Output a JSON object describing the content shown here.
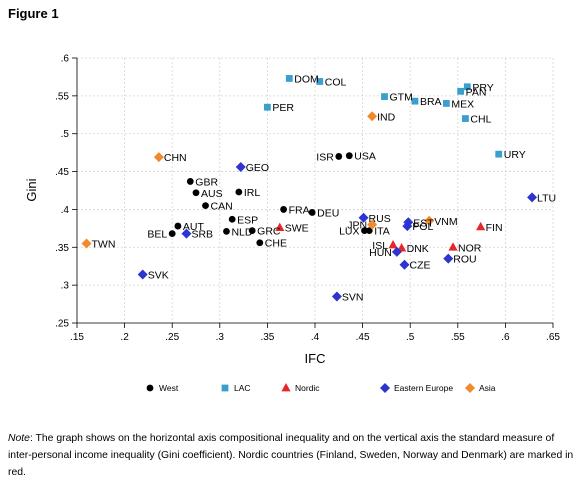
{
  "figure_label": "Figure 1",
  "note": {
    "label": "Note",
    "text": ": The graph shows on the horizontal axis compositional inequality and on the vertical axis the standard measure of inter-personal income inequality (Gini coefficient). Nordic countries (Finland, Sweden, Norway and Denmark) are marked in red."
  },
  "colors": {
    "West": "#000000",
    "LAC": "#3a9fcc",
    "Nordic": "#e8262a",
    "Eastern Europe": "#2e34cf",
    "Asia": "#f08a2c"
  },
  "chart_data": {
    "type": "scatter",
    "xlabel": "IFC",
    "ylabel": "Gini",
    "xlim": [
      0.15,
      0.65
    ],
    "ylim": [
      0.25,
      0.6
    ],
    "xticks": [
      ".15",
      ".2",
      ".25",
      ".3",
      ".35",
      ".4",
      ".45",
      ".5",
      ".55",
      ".6",
      ".65"
    ],
    "yticks": [
      ".25",
      ".3",
      ".35",
      ".4",
      ".45",
      ".5",
      ".55",
      ".6"
    ],
    "grid": true,
    "legend_position": "bottom",
    "series": [
      {
        "name": "West",
        "marker": "circle",
        "points": [
          {
            "label": "GBR",
            "x": 0.269,
            "y": 0.437
          },
          {
            "label": "AUS",
            "x": 0.275,
            "y": 0.422
          },
          {
            "label": "CAN",
            "x": 0.285,
            "y": 0.405
          },
          {
            "label": "IRL",
            "x": 0.32,
            "y": 0.423
          },
          {
            "label": "ESP",
            "x": 0.313,
            "y": 0.387
          },
          {
            "label": "AUT",
            "x": 0.256,
            "y": 0.378
          },
          {
            "label": "BEL",
            "x": 0.25,
            "y": 0.368
          },
          {
            "label": "NLD",
            "x": 0.307,
            "y": 0.371
          },
          {
            "label": "GRC",
            "x": 0.334,
            "y": 0.372
          },
          {
            "label": "CHE",
            "x": 0.342,
            "y": 0.356
          },
          {
            "label": "FRA",
            "x": 0.367,
            "y": 0.4
          },
          {
            "label": "DEU",
            "x": 0.397,
            "y": 0.396
          },
          {
            "label": "ISR",
            "x": 0.425,
            "y": 0.47
          },
          {
            "label": "USA",
            "x": 0.436,
            "y": 0.471
          },
          {
            "label": "LUX",
            "x": 0.452,
            "y": 0.372
          },
          {
            "label": "ITA",
            "x": 0.457,
            "y": 0.372
          }
        ]
      },
      {
        "name": "LAC",
        "marker": "square",
        "points": [
          {
            "label": "DOM",
            "x": 0.373,
            "y": 0.573
          },
          {
            "label": "COL",
            "x": 0.405,
            "y": 0.569
          },
          {
            "label": "PER",
            "x": 0.35,
            "y": 0.535
          },
          {
            "label": "GTM",
            "x": 0.473,
            "y": 0.549
          },
          {
            "label": "BRA",
            "x": 0.505,
            "y": 0.543
          },
          {
            "label": "MEX",
            "x": 0.538,
            "y": 0.54
          },
          {
            "label": "PRY",
            "x": 0.56,
            "y": 0.562
          },
          {
            "label": "PAN",
            "x": 0.553,
            "y": 0.556
          },
          {
            "label": "CHL",
            "x": 0.558,
            "y": 0.52
          },
          {
            "label": "URY",
            "x": 0.593,
            "y": 0.473
          }
        ]
      },
      {
        "name": "Nordic",
        "marker": "triangle",
        "points": [
          {
            "label": "SWE",
            "x": 0.363,
            "y": 0.376
          },
          {
            "label": "ISL",
            "x": 0.482,
            "y": 0.353
          },
          {
            "label": "DNK",
            "x": 0.491,
            "y": 0.349
          },
          {
            "label": "NOR",
            "x": 0.545,
            "y": 0.35
          },
          {
            "label": "FIN",
            "x": 0.574,
            "y": 0.377
          }
        ]
      },
      {
        "name": "Eastern Europe",
        "marker": "diamond",
        "points": [
          {
            "label": "GEO",
            "x": 0.322,
            "y": 0.456
          },
          {
            "label": "SRB",
            "x": 0.265,
            "y": 0.368
          },
          {
            "label": "SVK",
            "x": 0.219,
            "y": 0.314
          },
          {
            "label": "SVN",
            "x": 0.423,
            "y": 0.285
          },
          {
            "label": "RUS",
            "x": 0.451,
            "y": 0.389
          },
          {
            "label": "EST",
            "x": 0.498,
            "y": 0.383
          },
          {
            "label": "POL",
            "x": 0.497,
            "y": 0.378
          },
          {
            "label": "HUN",
            "x": 0.486,
            "y": 0.344
          },
          {
            "label": "CZE",
            "x": 0.494,
            "y": 0.327
          },
          {
            "label": "ROU",
            "x": 0.54,
            "y": 0.335
          },
          {
            "label": "LTU",
            "x": 0.628,
            "y": 0.416
          }
        ]
      },
      {
        "name": "Asia",
        "marker": "diamond",
        "points": [
          {
            "label": "CHN",
            "x": 0.236,
            "y": 0.469
          },
          {
            "label": "IND",
            "x": 0.46,
            "y": 0.523
          },
          {
            "label": "TWN",
            "x": 0.16,
            "y": 0.355
          },
          {
            "label": "JPN",
            "x": 0.46,
            "y": 0.38
          },
          {
            "label": "VNM",
            "x": 0.52,
            "y": 0.385
          }
        ]
      }
    ]
  }
}
